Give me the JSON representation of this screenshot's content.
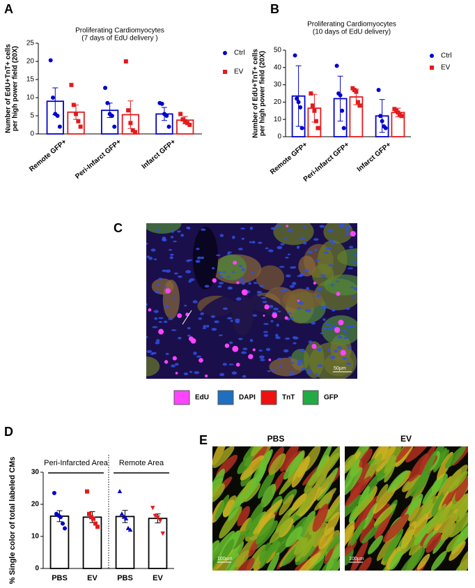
{
  "chart_data": [
    {
      "type": "bar",
      "title": [
        "Proliferating Cardiomyocytes",
        "(7 days of EdU delivery )"
      ],
      "y_label": [
        "Number of EdU+TnT+ cells",
        "per high power field (20X)"
      ],
      "categories": [
        "Remote GFP+",
        "Peri-Infarct GFP+",
        "Infarct GFP+"
      ],
      "series": [
        {
          "name": "Ctrl",
          "color": "#0000cc",
          "marker": "circle",
          "values": [
            9,
            6.5,
            5.5
          ],
          "errors": [
            3.7,
            2,
            1.8
          ],
          "points": [
            [
              20.3,
              10,
              5.5,
              5,
              2
            ],
            [
              12.7,
              8.5,
              5.5,
              5,
              2
            ],
            [
              8.5,
              8.3,
              5.5,
              5,
              2
            ]
          ]
        },
        {
          "name": "EV",
          "color": "#e41a1c",
          "marker": "square",
          "values": [
            6,
            5.3,
            3.8
          ],
          "errors": [
            2,
            3.8,
            1
          ],
          "points": [
            [
              13.5,
              8,
              5.5,
              3.5,
              2
            ],
            [
              20,
              6.5,
              3,
              1,
              0.5
            ],
            [
              5.5,
              4,
              3.5,
              3,
              2.5
            ]
          ]
        }
      ],
      "ylim": [
        0,
        25
      ],
      "yticks": [
        0,
        5,
        10,
        15,
        20,
        25
      ],
      "legend": "right"
    },
    {
      "type": "bar",
      "title": [
        "Proliferating Cardiomyocytes",
        "(10 days of EdU delivery)"
      ],
      "y_label": [
        "Number of EdU+TnT+ cells",
        "per high power field (20X)"
      ],
      "categories": [
        "Remote GFP+",
        "Peri-Infarct GFP+",
        "Infarct GFP+"
      ],
      "series": [
        {
          "name": "Ctrl",
          "color": "#0000cc",
          "marker": "circle",
          "values": [
            23.5,
            22,
            12
          ],
          "errors": [
            17.5,
            13,
            9.5
          ],
          "points": [
            [
              47,
              22,
              20,
              17,
              5
            ],
            [
              41,
              25,
              24,
              15,
              5
            ],
            [
              27,
              12,
              9,
              6,
              5
            ]
          ]
        },
        {
          "name": "EV",
          "color": "#e41a1c",
          "marker": "square",
          "values": [
            16.5,
            23,
            14
          ],
          "errors": [
            8,
            4.5,
            2.5
          ],
          "points": [
            [
              25,
              18,
              15,
              9,
              5
            ],
            [
              28,
              27,
              26,
              20,
              18
            ],
            [
              16,
              15,
              14,
              13,
              12
            ]
          ]
        }
      ],
      "ylim": [
        0,
        50
      ],
      "yticks": [
        0,
        10,
        20,
        30,
        40,
        50
      ],
      "legend": "right"
    },
    {
      "type": "bar",
      "y_label": [
        "% Single color of total labeled CMs"
      ],
      "categories": [
        "PBS",
        "EV",
        "PBS",
        "EV"
      ],
      "groups": [
        "Peri-Infarcted Area",
        "Remote Area"
      ],
      "series": [
        {
          "color": "#000000",
          "values": [
            16.3,
            16,
            16.2,
            15.6
          ],
          "errors": [
            1.7,
            1.7,
            1.9,
            1.4
          ],
          "points": [
            [
              23.5,
              17,
              16.5,
              16,
              14,
              12.5
            ],
            [
              24,
              17,
              16,
              15.5,
              14,
              13
            ],
            [
              24,
              17,
              16,
              15.5,
              12.5,
              12
            ],
            [
              19,
              16.5,
              16,
              15,
              11
            ]
          ]
        }
      ],
      "point_colors": [
        "#0000cc",
        "#e41a1c",
        "#0000cc",
        "#e41a1c"
      ],
      "point_markers": [
        "circle",
        "square",
        "triangle-up",
        "triangle-down"
      ],
      "ylim": [
        0,
        30
      ],
      "yticks": [
        0,
        10,
        20,
        30
      ]
    }
  ],
  "figure": {
    "panel_labels": [
      "A",
      "B",
      "C",
      "D",
      "E"
    ],
    "stain_legend": [
      "EdU",
      "DAPI",
      "TnT",
      "GFP"
    ],
    "image_labels": [
      "PBS",
      "EV"
    ],
    "scale_bars": [
      "50µm",
      "100µm",
      "100µm"
    ]
  }
}
